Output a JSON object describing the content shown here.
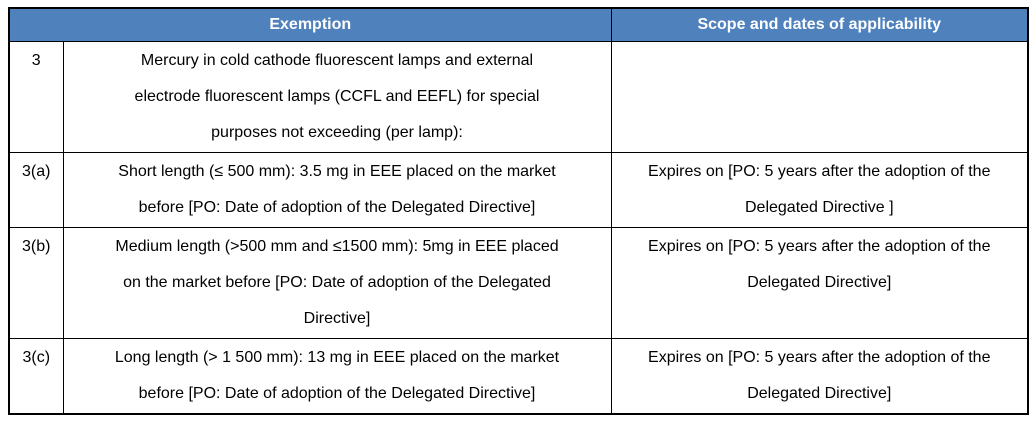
{
  "document": {
    "type": "regulatory-exemption-table",
    "colors": {
      "header_bg": "#4f81bd",
      "header_text": "#ffffff",
      "border": "#000000",
      "body_text": "#000000",
      "page_bg": "#ffffff"
    },
    "table": {
      "header": {
        "exemption": "Exemption",
        "scope": "Scope and dates of applicability"
      },
      "rows": [
        {
          "id": "3",
          "exemption": [
            "Mercury in cold cathode fluorescent lamps and external",
            "electrode fluorescent lamps (CCFL and EEFL) for special",
            "purposes not exceeding (per lamp):"
          ],
          "scope": ""
        },
        {
          "id": "3(a)",
          "exemption": [
            "Short length (≤ 500 mm): 3.5 mg in EEE placed on the market",
            "before [PO: Date of adoption of the Delegated Directive]"
          ],
          "scope": [
            "Expires on [PO: 5 years after the adoption of the",
            "Delegated Directive ]"
          ]
        },
        {
          "id": "3(b)",
          "exemption": [
            "Medium length (>500 mm and ≤1500 mm): 5mg in EEE placed",
            "on the market before [PO: Date of adoption of the Delegated",
            "Directive]"
          ],
          "scope": [
            "Expires on [PO: 5 years after the adoption of the",
            "Delegated Directive]"
          ]
        },
        {
          "id": "3(c)",
          "exemption": [
            "Long length (> 1 500 mm): 13 mg in EEE placed on the market",
            "before [PO: Date of adoption of the Delegated Directive]"
          ],
          "scope": [
            "Expires on [PO: 5 years after the adoption of the",
            "Delegated Directive]"
          ]
        }
      ]
    }
  }
}
